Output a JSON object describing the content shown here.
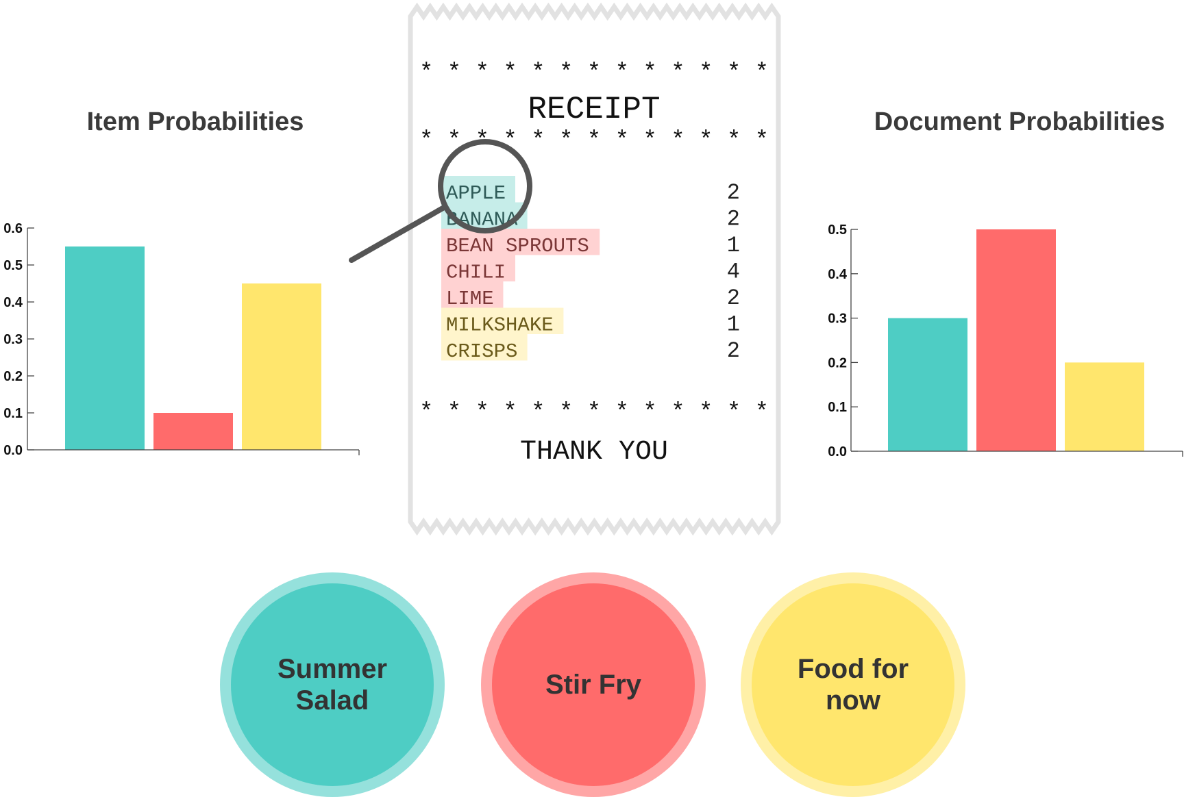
{
  "colors": {
    "teal": "#4ecdc4",
    "red": "#ff6b6b",
    "yellow": "#ffe66d",
    "teal_highlight": "#c6ede9",
    "red_highlight": "#ffd2d2",
    "yellow_highlight": "#fff5cc",
    "receipt_border": "#e2e2e2",
    "magnifier": "#555555"
  },
  "chart_data": [
    {
      "type": "bar",
      "title": "Item Probabilities",
      "categories": [
        "",
        "",
        ""
      ],
      "values": [
        0.55,
        0.1,
        0.45
      ],
      "ylim": [
        0,
        0.6
      ],
      "yticks": [
        "0.0",
        "0.1",
        "0.2",
        "0.3",
        "0.4",
        "0.5",
        "0.6"
      ],
      "grid": false
    },
    {
      "type": "bar",
      "title": "Document Probabilities",
      "categories": [
        "",
        "",
        ""
      ],
      "values": [
        0.3,
        0.5,
        0.2
      ],
      "ylim": [
        0,
        0.5
      ],
      "yticks": [
        "0.0",
        "0.1",
        "0.2",
        "0.3",
        "0.4",
        "0.5"
      ],
      "grid": false
    }
  ],
  "receipt": {
    "stars": "* * * * * * * * * * * * *",
    "title": "RECEIPT",
    "items": [
      {
        "name": "APPLE",
        "qty": "2",
        "topic": "teal"
      },
      {
        "name": "BANANA",
        "qty": "2",
        "topic": "teal"
      },
      {
        "name": "BEAN SPROUTS",
        "qty": "1",
        "topic": "red"
      },
      {
        "name": "CHILI",
        "qty": "4",
        "topic": "red"
      },
      {
        "name": "LIME",
        "qty": "2",
        "topic": "red"
      },
      {
        "name": "MILKSHAKE",
        "qty": "1",
        "topic": "yellow"
      },
      {
        "name": "CRISPS",
        "qty": "2",
        "topic": "yellow"
      }
    ],
    "footer": "THANK YOU"
  },
  "topics": [
    {
      "lines": [
        "Summer",
        "Salad"
      ],
      "color": "teal"
    },
    {
      "lines": [
        "Stir Fry"
      ],
      "color": "red"
    },
    {
      "lines": [
        "Food for",
        "now"
      ],
      "color": "yellow"
    }
  ],
  "icons": {
    "magnifier": "magnifying-glass-icon"
  }
}
